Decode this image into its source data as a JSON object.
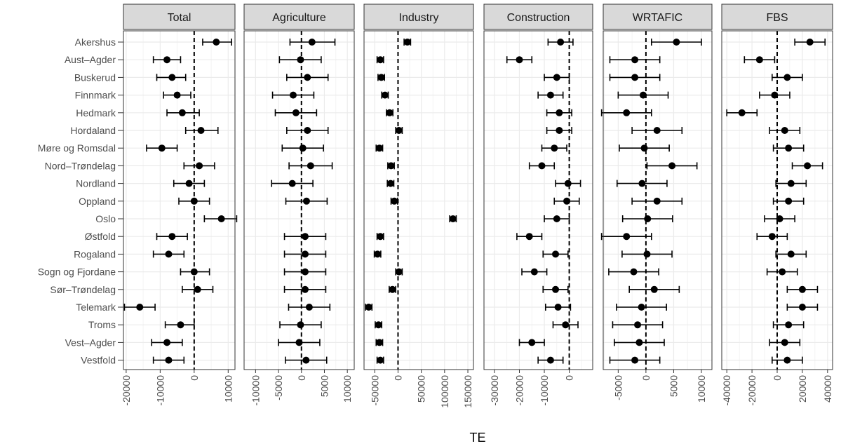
{
  "chart_data": {
    "type": "scatter",
    "xlabel": "TE",
    "categories": [
      "Akershus",
      "Aust–Agder",
      "Buskerud",
      "Finnmark",
      "Hedmark",
      "Hordaland",
      "Møre og Romsdal",
      "Nord–Trøndelag",
      "Nordland",
      "Oppland",
      "Oslo",
      "Østfold",
      "Rogaland",
      "Sogn og Fjordane",
      "Sør–Trøndelag",
      "Telemark",
      "Troms",
      "Vest–Agder",
      "Vestfold"
    ],
    "panels": [
      {
        "name": "Total",
        "xlim": [
          -20800,
          12000
        ],
        "ticks": [
          -20000,
          -10000,
          0,
          10000
        ],
        "tick_labels": [
          "-20000",
          "-10000",
          "0",
          "10000"
        ],
        "points": [
          {
            "e": 6500,
            "lo": 2500,
            "hi": 11000
          },
          {
            "e": -8000,
            "lo": -12000,
            "hi": -4000
          },
          {
            "e": -6500,
            "lo": -11000,
            "hi": -2500
          },
          {
            "e": -5000,
            "lo": -9000,
            "hi": -1000
          },
          {
            "e": -3500,
            "lo": -8000,
            "hi": 1500
          },
          {
            "e": 2000,
            "lo": -2500,
            "hi": 7000
          },
          {
            "e": -9500,
            "lo": -14000,
            "hi": -5000
          },
          {
            "e": 1500,
            "lo": -3000,
            "hi": 6000
          },
          {
            "e": -1500,
            "lo": -6000,
            "hi": 3000
          },
          {
            "e": 0,
            "lo": -4500,
            "hi": 4500
          },
          {
            "e": 8000,
            "lo": 3000,
            "hi": 12500
          },
          {
            "e": -6500,
            "lo": -11000,
            "hi": -2000
          },
          {
            "e": -7500,
            "lo": -12000,
            "hi": -3000
          },
          {
            "e": 0,
            "lo": -4000,
            "hi": 4500
          },
          {
            "e": 1000,
            "lo": -3500,
            "hi": 5500
          },
          {
            "e": -16000,
            "lo": -20500,
            "hi": -11500
          },
          {
            "e": -4000,
            "lo": -8500,
            "hi": 0
          },
          {
            "e": -8000,
            "lo": -12500,
            "hi": -3500
          },
          {
            "e": -7500,
            "lo": -12000,
            "hi": -3000
          }
        ]
      },
      {
        "name": "Agriculture",
        "xlim": [
          -12500,
          11500
        ],
        "ticks": [
          -10000,
          -5000,
          0,
          5000,
          10000
        ],
        "tick_labels": [
          "-10000",
          "-5000",
          "0",
          "5000",
          "10000"
        ],
        "points": [
          {
            "e": 2300,
            "lo": -2500,
            "hi": 7300
          },
          {
            "e": -200,
            "lo": -4800,
            "hi": 4300
          },
          {
            "e": 1300,
            "lo": -3200,
            "hi": 5800
          },
          {
            "e": -1800,
            "lo": -6300,
            "hi": 2700
          },
          {
            "e": -1200,
            "lo": -5700,
            "hi": 3300
          },
          {
            "e": 1300,
            "lo": -3200,
            "hi": 5800
          },
          {
            "e": 300,
            "lo": -4200,
            "hi": 4800
          },
          {
            "e": 2000,
            "lo": -2700,
            "hi": 6700
          },
          {
            "e": -2000,
            "lo": -6500,
            "hi": 2500
          },
          {
            "e": 1100,
            "lo": -3400,
            "hi": 5600
          },
          {
            "e": null,
            "lo": null,
            "hi": null
          },
          {
            "e": 800,
            "lo": -3700,
            "hi": 5300
          },
          {
            "e": 800,
            "lo": -3700,
            "hi": 5300
          },
          {
            "e": 800,
            "lo": -3700,
            "hi": 5300
          },
          {
            "e": 800,
            "lo": -3700,
            "hi": 5300
          },
          {
            "e": 1700,
            "lo": -2800,
            "hi": 6200
          },
          {
            "e": -200,
            "lo": -4700,
            "hi": 4300
          },
          {
            "e": -500,
            "lo": -5000,
            "hi": 4000
          },
          {
            "e": 1000,
            "lo": -3500,
            "hi": 5500
          }
        ]
      },
      {
        "name": "Industry",
        "xlim": [
          -73000,
          162000
        ],
        "ticks": [
          -50000,
          0,
          50000,
          100000,
          150000
        ],
        "tick_labels": [
          "-50000",
          "0",
          "50000",
          "100000",
          "150000"
        ],
        "points": [
          {
            "e": 20000,
            "lo": 13000,
            "hi": 27000
          },
          {
            "e": -38000,
            "lo": -45000,
            "hi": -31000
          },
          {
            "e": -36000,
            "lo": -43000,
            "hi": -29000
          },
          {
            "e": -28000,
            "lo": -35000,
            "hi": -21000
          },
          {
            "e": -18000,
            "lo": -25000,
            "hi": -11000
          },
          {
            "e": 2000,
            "lo": -5000,
            "hi": 9000
          },
          {
            "e": -40000,
            "lo": -47000,
            "hi": -33000
          },
          {
            "e": -15000,
            "lo": -22000,
            "hi": -8000
          },
          {
            "e": -16000,
            "lo": -23000,
            "hi": -9000
          },
          {
            "e": -8000,
            "lo": -15000,
            "hi": -1000
          },
          {
            "e": 118000,
            "lo": 111000,
            "hi": 125000
          },
          {
            "e": -38000,
            "lo": -45000,
            "hi": -31000
          },
          {
            "e": -44000,
            "lo": -51000,
            "hi": -37000
          },
          {
            "e": 2000,
            "lo": -5000,
            "hi": 9000
          },
          {
            "e": -12000,
            "lo": -19000,
            "hi": -5000
          },
          {
            "e": -63000,
            "lo": -70000,
            "hi": -56000
          },
          {
            "e": -42000,
            "lo": -49000,
            "hi": -35000
          },
          {
            "e": -40000,
            "lo": -47000,
            "hi": -33000
          },
          {
            "e": -38000,
            "lo": -45000,
            "hi": -31000
          }
        ]
      },
      {
        "name": "Construction",
        "xlim": [
          -34200,
          9400
        ],
        "ticks": [
          -30000,
          -20000,
          -10000,
          0
        ],
        "tick_labels": [
          "-30000",
          "-20000",
          "-10000",
          "0"
        ],
        "points": [
          {
            "e": -3500,
            "lo": -8500,
            "hi": 1500
          },
          {
            "e": -20000,
            "lo": -25000,
            "hi": -15000
          },
          {
            "e": -5000,
            "lo": -10000,
            "hi": 0
          },
          {
            "e": -7500,
            "lo": -12500,
            "hi": -2500
          },
          {
            "e": -4000,
            "lo": -9000,
            "hi": 1000
          },
          {
            "e": -4000,
            "lo": -9000,
            "hi": 1000
          },
          {
            "e": -6000,
            "lo": -11000,
            "hi": -1000
          },
          {
            "e": -11000,
            "lo": -16000,
            "hi": -6000
          },
          {
            "e": -500,
            "lo": -5500,
            "hi": 4500
          },
          {
            "e": -1000,
            "lo": -6000,
            "hi": 4000
          },
          {
            "e": -5000,
            "lo": -10000,
            "hi": 0
          },
          {
            "e": -16000,
            "lo": -21000,
            "hi": -11000
          },
          {
            "e": -5500,
            "lo": -10500,
            "hi": -500
          },
          {
            "e": -14000,
            "lo": -19000,
            "hi": -9000
          },
          {
            "e": -5500,
            "lo": -10500,
            "hi": -500
          },
          {
            "e": -4500,
            "lo": -9500,
            "hi": 500
          },
          {
            "e": -1500,
            "lo": -6500,
            "hi": 3500
          },
          {
            "e": -15000,
            "lo": -20000,
            "hi": -10000
          },
          {
            "e": -7500,
            "lo": -12500,
            "hi": -2500
          }
        ]
      },
      {
        "name": "WRTAFIC",
        "xlim": [
          -7700,
          11900
        ],
        "ticks": [
          -5000,
          0,
          5000,
          10000
        ],
        "tick_labels": [
          "-5000",
          "0",
          "5000",
          "10000"
        ],
        "points": [
          {
            "e": 5500,
            "lo": 1000,
            "hi": 10000
          },
          {
            "e": -2000,
            "lo": -6500,
            "hi": 2500
          },
          {
            "e": -2000,
            "lo": -6500,
            "hi": 2500
          },
          {
            "e": -500,
            "lo": -5000,
            "hi": 4000
          },
          {
            "e": -3500,
            "lo": -8000,
            "hi": 1000
          },
          {
            "e": 2000,
            "lo": -2500,
            "hi": 6500
          },
          {
            "e": -300,
            "lo": -4800,
            "hi": 4200
          },
          {
            "e": 4700,
            "lo": 200,
            "hi": 9200
          },
          {
            "e": -700,
            "lo": -5200,
            "hi": 3800
          },
          {
            "e": 2000,
            "lo": -2500,
            "hi": 6500
          },
          {
            "e": 300,
            "lo": -4200,
            "hi": 4800
          },
          {
            "e": -3500,
            "lo": -8000,
            "hi": 1000
          },
          {
            "e": 200,
            "lo": -4300,
            "hi": 4700
          },
          {
            "e": -2200,
            "lo": -6700,
            "hi": 2300
          },
          {
            "e": 1500,
            "lo": -3000,
            "hi": 6000
          },
          {
            "e": -800,
            "lo": -5300,
            "hi": 3700
          },
          {
            "e": -1500,
            "lo": -6000,
            "hi": 3000
          },
          {
            "e": -1200,
            "lo": -5700,
            "hi": 3300
          },
          {
            "e": -2000,
            "lo": -6500,
            "hi": 2500
          }
        ]
      },
      {
        "name": "FBS",
        "xlim": [
          -44000,
          44000
        ],
        "ticks": [
          -40000,
          -20000,
          0,
          20000,
          40000
        ],
        "tick_labels": [
          "-40000",
          "-20000",
          "0",
          "20000",
          "40000"
        ],
        "points": [
          {
            "e": 26000,
            "lo": 14000,
            "hi": 38000
          },
          {
            "e": -14000,
            "lo": -26000,
            "hi": -2000
          },
          {
            "e": 8000,
            "lo": -4000,
            "hi": 20000
          },
          {
            "e": -2000,
            "lo": -14000,
            "hi": 10000
          },
          {
            "e": -28000,
            "lo": -40000,
            "hi": -16000
          },
          {
            "e": 6000,
            "lo": -6000,
            "hi": 18000
          },
          {
            "e": 9000,
            "lo": -3000,
            "hi": 21000
          },
          {
            "e": 24000,
            "lo": 12000,
            "hi": 36000
          },
          {
            "e": 11000,
            "lo": -1000,
            "hi": 23000
          },
          {
            "e": 9000,
            "lo": -3000,
            "hi": 21000
          },
          {
            "e": 2000,
            "lo": -10000,
            "hi": 14000
          },
          {
            "e": -4000,
            "lo": -16000,
            "hi": 8000
          },
          {
            "e": 11000,
            "lo": -1000,
            "hi": 23000
          },
          {
            "e": 4000,
            "lo": -8000,
            "hi": 16000
          },
          {
            "e": 20000,
            "lo": 8000,
            "hi": 32000
          },
          {
            "e": 20000,
            "lo": 8000,
            "hi": 32000
          },
          {
            "e": 9000,
            "lo": -3000,
            "hi": 21000
          },
          {
            "e": 6000,
            "lo": -6000,
            "hi": 18000
          },
          {
            "e": 8000,
            "lo": -4000,
            "hi": 20000
          }
        ]
      }
    ]
  }
}
